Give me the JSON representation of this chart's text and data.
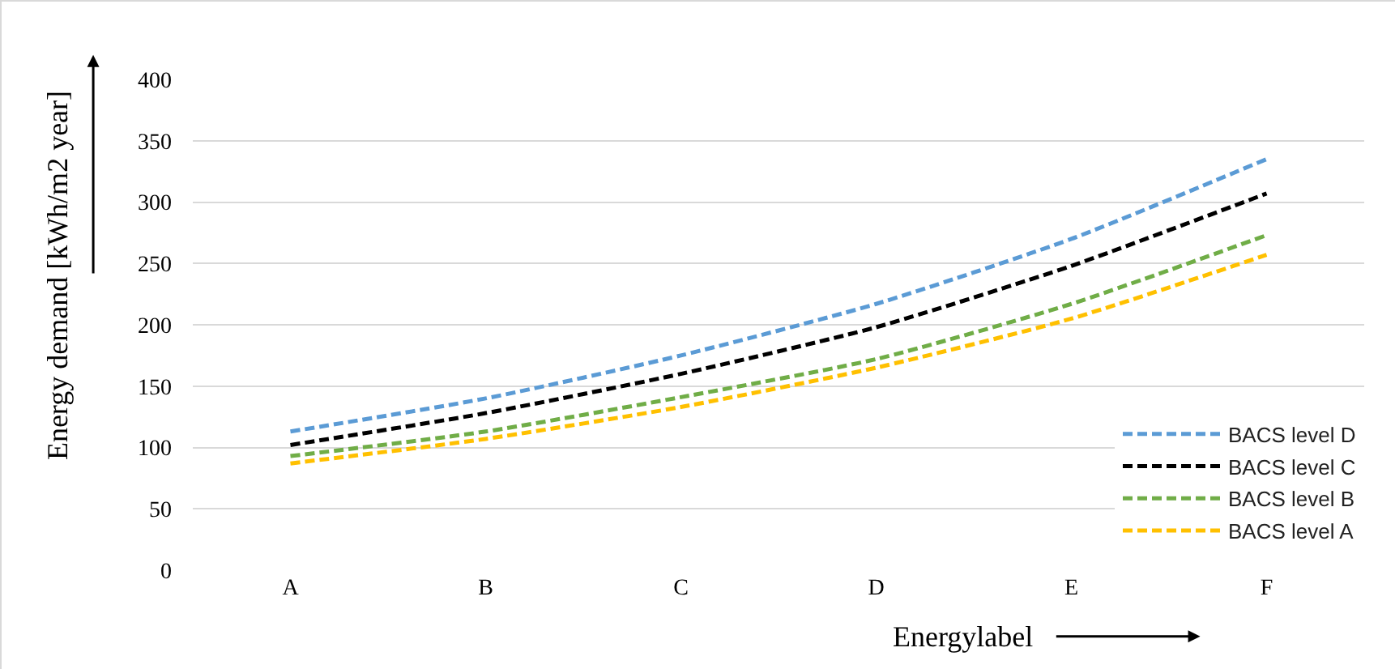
{
  "chart_data": {
    "type": "line",
    "xlabel": "Energylabel",
    "ylabel": "Energy demand [kWh/m2 year]",
    "categories": [
      "A",
      "B",
      "C",
      "D",
      "E",
      "F"
    ],
    "series": [
      {
        "name": "BACS level D",
        "color": "#5b9bd5",
        "line_style": "dashed",
        "values": [
          113,
          140,
          175,
          217,
          270,
          335
        ]
      },
      {
        "name": "BACS level C",
        "color": "#000000",
        "line_style": "dashed",
        "values": [
          102,
          128,
          160,
          198,
          248,
          307
        ]
      },
      {
        "name": "BACS level B",
        "color": "#70ad47",
        "line_style": "dashed",
        "values": [
          93,
          113,
          141,
          172,
          217,
          273
        ]
      },
      {
        "name": "BACS level A",
        "color": "#ffc000",
        "line_style": "dashed",
        "values": [
          87,
          107,
          133,
          165,
          205,
          257
        ]
      }
    ],
    "ylim": [
      0,
      400
    ],
    "yticks": [
      0,
      50,
      100,
      150,
      200,
      250,
      300,
      350,
      400
    ],
    "grid": "y",
    "legend": "bottom right",
    "marker": "none"
  }
}
